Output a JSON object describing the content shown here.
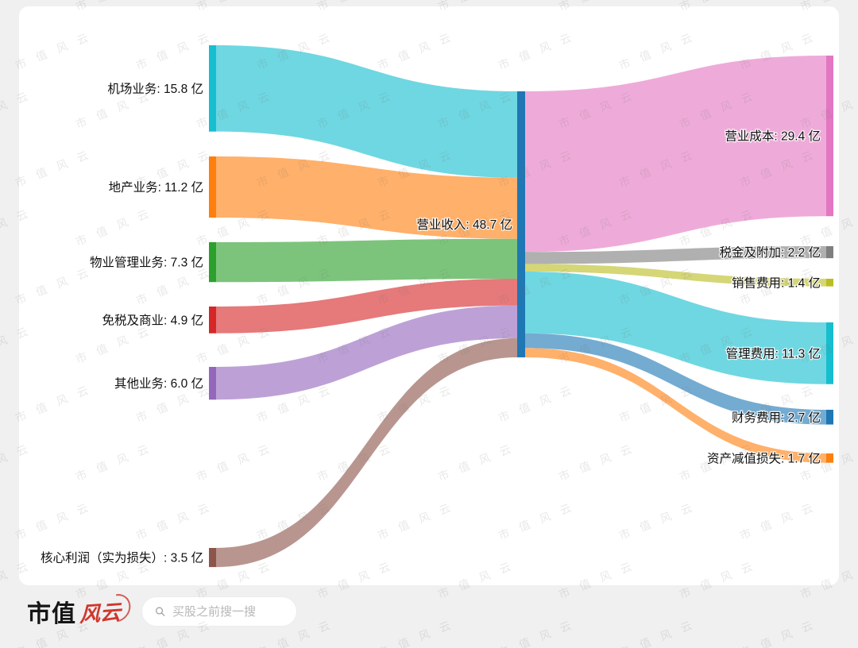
{
  "watermark": "市值风云",
  "chart_data": {
    "type": "sankey",
    "unit": "亿",
    "center": {
      "name": "营业收入",
      "label": "营业收入: 48.7 亿",
      "value": 48.7,
      "color": "#1f77b4"
    },
    "sources": [
      {
        "name": "机场业务",
        "label": "机场业务: 15.8 亿",
        "value": 15.8,
        "color": "#17becf"
      },
      {
        "name": "地产业务",
        "label": "地产业务: 11.2 亿",
        "value": 11.2,
        "color": "#ff7f0e"
      },
      {
        "name": "物业管理业务",
        "label": "物业管理业务: 7.3 亿",
        "value": 7.3,
        "color": "#2ca02c"
      },
      {
        "name": "免税及商业",
        "label": "免税及商业: 4.9 亿",
        "value": 4.9,
        "color": "#d62728"
      },
      {
        "name": "其他业务",
        "label": "其他业务: 6.0 亿",
        "value": 6.0,
        "color": "#9467bd"
      },
      {
        "name": "核心利润（实为损失）",
        "label": "核心利润（实为损失）: 3.5 亿",
        "value": 3.5,
        "color": "#8c564b"
      }
    ],
    "targets": [
      {
        "name": "营业成本",
        "label": "营业成本: 29.4 亿",
        "value": 29.4,
        "color": "#e377c2"
      },
      {
        "name": "税金及附加",
        "label": "税金及附加: 2.2 亿",
        "value": 2.2,
        "color": "#7f7f7f"
      },
      {
        "name": "销售费用",
        "label": "销售费用: 1.4 亿",
        "value": 1.4,
        "color": "#bcbd22"
      },
      {
        "name": "管理费用",
        "label": "管理费用: 11.3 亿",
        "value": 11.3,
        "color": "#17becf"
      },
      {
        "name": "财务费用",
        "label": "财务费用: 2.7 亿",
        "value": 2.7,
        "color": "#1f77b4"
      },
      {
        "name": "资产减值损失",
        "label": "资产减值损失: 1.7 亿",
        "value": 1.7,
        "color": "#ff7f0e"
      }
    ],
    "layout": {
      "flow_opacity": 0.62,
      "legend": "none",
      "grid": "off"
    }
  },
  "footer": {
    "brand_black": "市值",
    "brand_red": "风云",
    "search_placeholder": "买股之前搜一搜"
  }
}
